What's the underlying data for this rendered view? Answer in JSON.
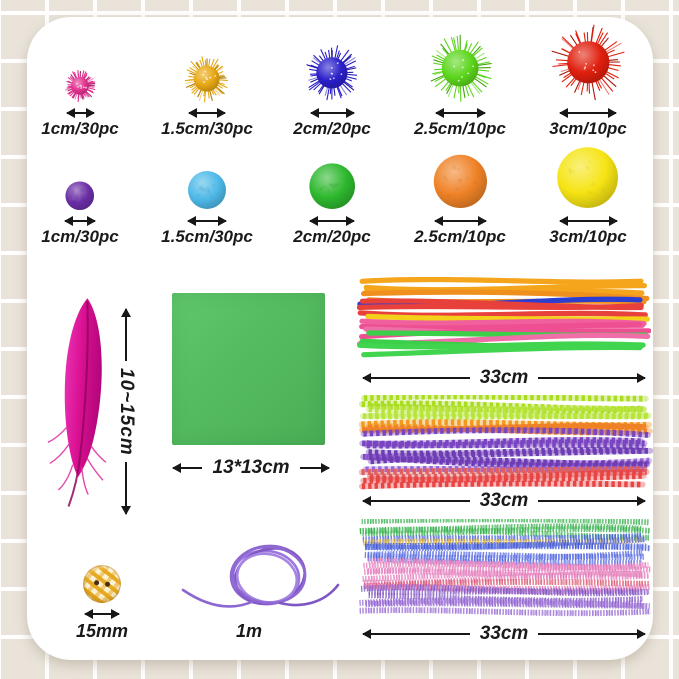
{
  "pom_rows": [
    {
      "type": "glitter",
      "items": [
        {
          "label": "1cm/30pc",
          "color": "#e23390",
          "size": 26
        },
        {
          "label": "1.5cm/30pc",
          "color": "#e7a713",
          "size": 38
        },
        {
          "label": "2cm/20pc",
          "color": "#2a1fc9",
          "size": 46
        },
        {
          "label": "2.5cm/10pc",
          "color": "#5cd61c",
          "size": 54
        },
        {
          "label": "3cm/10pc",
          "color": "#e01f0d",
          "size": 62
        }
      ]
    },
    {
      "type": "plain",
      "items": [
        {
          "label": "1cm/30pc",
          "color": "#6b2ea6",
          "size": 30
        },
        {
          "label": "1.5cm/30pc",
          "color": "#4db9e8",
          "size": 40
        },
        {
          "label": "2cm/20pc",
          "color": "#2eb82e",
          "size": 48
        },
        {
          "label": "2.5cm/10pc",
          "color": "#ef8226",
          "size": 56
        },
        {
          "label": "3cm/10pc",
          "color": "#f6e414",
          "size": 64
        }
      ]
    }
  ],
  "feather": {
    "color": "#d80f90",
    "dimension_label": "10~15cm"
  },
  "paper": {
    "color": "#55bb60",
    "dimension_label": "13*13cm"
  },
  "pipe_cleaner_bundles": [
    {
      "style": "plain",
      "dimension_label": "33cm",
      "colors": [
        "#f5a51c",
        "#ef8f1d",
        "#2c3ed0",
        "#e8413c",
        "#f3d01a",
        "#f0609c",
        "#ee4f93",
        "#f06ea8",
        "#3bcf4a",
        "#41d44e"
      ]
    },
    {
      "style": "striped",
      "dimension_label": "33cm",
      "colors": [
        "#aadc20",
        "#b8e43c",
        "#f09a1e",
        "#ef8126",
        "#e05548",
        "#7a45c0",
        "#8a55cc",
        "#6e3cb4",
        "#9866d8",
        "#e06060",
        "#e84545"
      ]
    },
    {
      "style": "glitter",
      "dimension_label": "33cm",
      "colors": [
        "#2fae46",
        "#d8a81e",
        "#3c55d8",
        "#2c46cc",
        "#4c62e0",
        "#e273b8",
        "#d84a62",
        "#e070b0",
        "#8a55c8",
        "#7a4cc0",
        "#9060d0"
      ]
    }
  ],
  "button": {
    "color": "#e8ae2a",
    "dimension_label": "15mm"
  },
  "cord": {
    "color": "#8d67d0",
    "dimension_label": "1m"
  }
}
